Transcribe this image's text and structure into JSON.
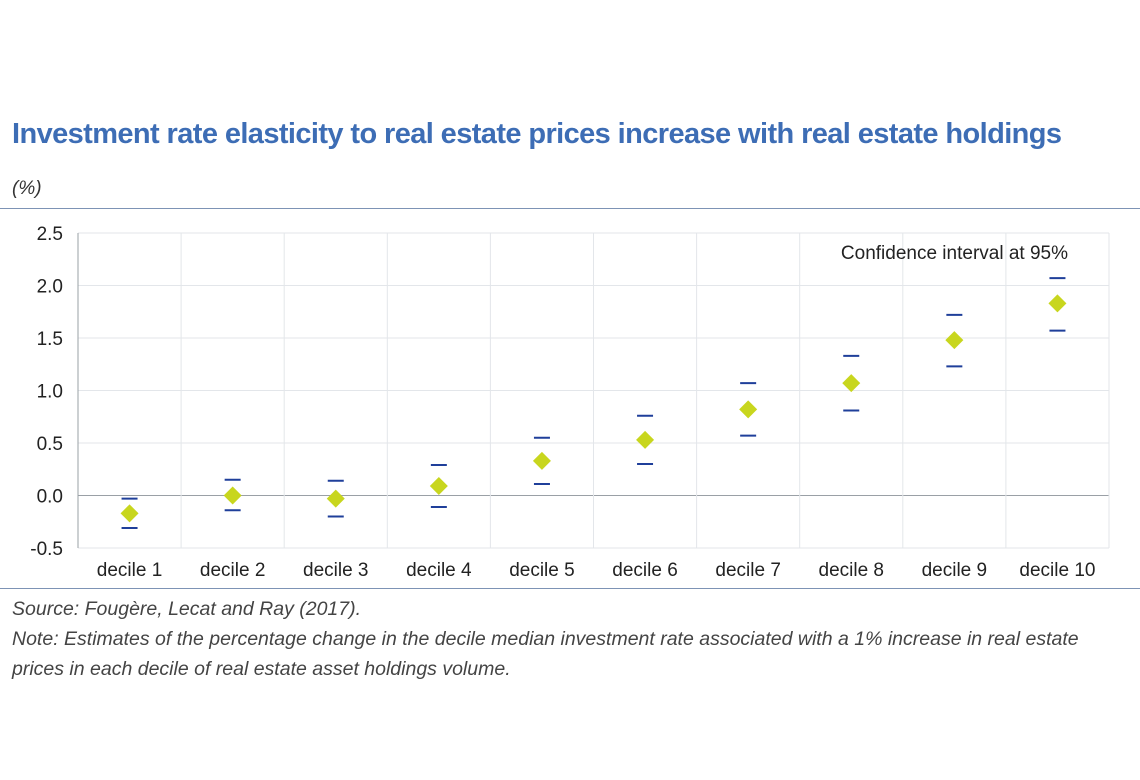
{
  "title": "Investment rate elasticity to real estate prices increase with real estate holdings",
  "unit": "(%)",
  "source": "Source: Fougère, Lecat and Ray (2017).",
  "note": "Note: Estimates of the percentage change in the decile median investment rate associated with a 1% increase in real estate prices in each decile of real estate asset holdings volume.",
  "colors": {
    "title": "#3d6db5",
    "point": "#c8d61e",
    "interval": "#1f3f9a",
    "grid": "#e3e6ea",
    "rule": "#7d93b5"
  },
  "chart_data": {
    "type": "scatter",
    "categories": [
      "decile 1",
      "decile 2",
      "decile 3",
      "decile 4",
      "decile 5",
      "decile 6",
      "decile 7",
      "decile 8",
      "decile 9",
      "decile 10"
    ],
    "values": [
      -0.17,
      0.0,
      -0.03,
      0.09,
      0.33,
      0.53,
      0.82,
      1.07,
      1.48,
      1.83
    ],
    "ci_upper": [
      -0.03,
      0.15,
      0.14,
      0.29,
      0.55,
      0.76,
      1.07,
      1.33,
      1.72,
      2.07
    ],
    "ci_lower": [
      -0.31,
      -0.14,
      -0.2,
      -0.11,
      0.11,
      0.3,
      0.57,
      0.81,
      1.23,
      1.57
    ],
    "yticks": [
      "2.5",
      "2.0",
      "1.5",
      "1.0",
      "0.5",
      "0.0",
      "-0.5"
    ],
    "ylim": [
      -0.5,
      2.5
    ],
    "annotation": "Confidence interval at 95%",
    "grid": true
  }
}
